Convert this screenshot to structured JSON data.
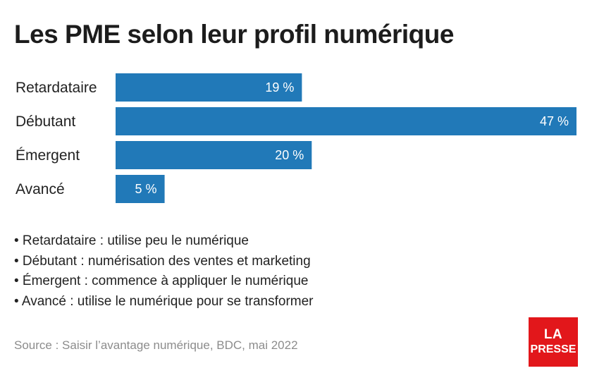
{
  "title": "Les PME selon leur profil numérique",
  "chart_data": {
    "type": "bar",
    "orientation": "horizontal",
    "categories": [
      "Retardataire",
      "Débutant",
      "Émergent",
      "Avancé"
    ],
    "values": [
      19,
      47,
      20,
      5
    ],
    "data_labels": [
      "19 %",
      "47 %",
      "20 %",
      "5 %"
    ],
    "unit": "%",
    "xlim": [
      0,
      47
    ],
    "grid": false,
    "bar_color": "#2179b8",
    "label_color": "#ffffff"
  },
  "notes": [
    "• Retardataire : utilise peu le numérique",
    "• Débutant : numérisation des ventes et marketing",
    "• Émergent : commence à appliquer le numérique",
    "• Avancé : utilise le numérique pour se transformer"
  ],
  "source": "Source : Saisir l’avantage numérique, BDC, mai 2022",
  "logo": {
    "line1": "LA",
    "line2": "PRESSE",
    "color": "#e2171b"
  }
}
